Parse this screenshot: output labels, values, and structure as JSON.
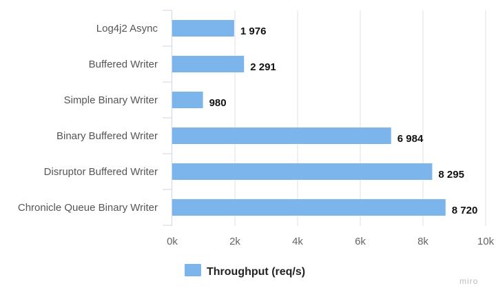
{
  "chart_data": {
    "type": "bar",
    "orientation": "horizontal",
    "categories": [
      "Log4j2 Async",
      "Buffered Writer",
      "Simple Binary Writer",
      "Binary Buffered Writer",
      "Disruptor Buffered Writer",
      "Chronicle Queue Binary Writer"
    ],
    "series": [
      {
        "name": "Throughput (req/s)",
        "values": [
          1976,
          2291,
          980,
          6984,
          8295,
          8720
        ],
        "value_labels": [
          "1 976",
          "2 291",
          "980",
          "6 984",
          "8 295",
          "8 720"
        ],
        "color": "#7cb5ec"
      }
    ],
    "xlim": [
      0,
      10000
    ],
    "xticks": [
      0,
      2000,
      4000,
      6000,
      8000,
      10000
    ],
    "xtick_labels": [
      "0k",
      "2k",
      "4k",
      "6k",
      "8k",
      "10k"
    ],
    "grid": true,
    "legend": "bottom-center",
    "title": "",
    "xlabel": "",
    "ylabel": ""
  },
  "watermark": "miro",
  "colors": {
    "bar": "#7cb5ec",
    "grid": "#e0e0e0",
    "axis": "#ccd6eb"
  }
}
